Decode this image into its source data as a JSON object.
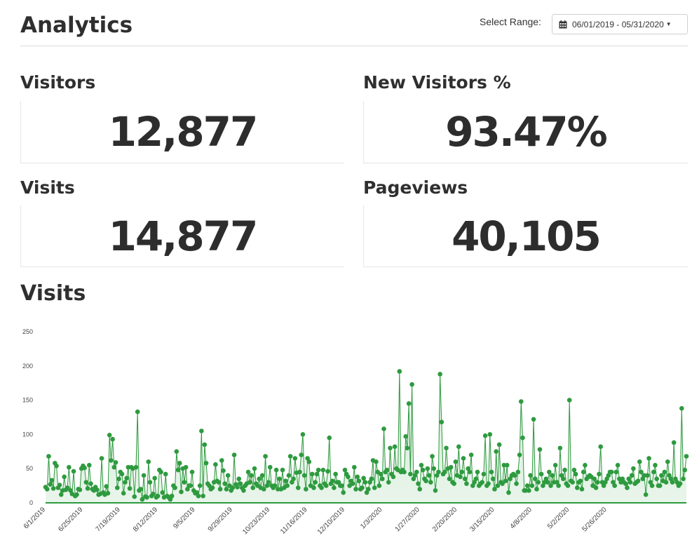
{
  "header": {
    "title": "Analytics",
    "range_label": "Select Range:",
    "range_value": "06/01/2019 - 05/31/2020",
    "calendar_icon": "calendar-icon",
    "caret_icon": "caret-down-icon"
  },
  "metrics": [
    {
      "title": "Visitors",
      "value": "12,877"
    },
    {
      "title": "New Visitors %",
      "value": "93.47%"
    },
    {
      "title": "Visits",
      "value": "14,877"
    },
    {
      "title": "Pageviews",
      "value": "40,105"
    }
  ],
  "chart_title": "Visits",
  "colors": {
    "line": "#2e9a3f",
    "fill": "#cfe9d3",
    "axis": "#2e9a3f"
  },
  "chart_data": {
    "type": "area",
    "title": "Visits",
    "xlabel": "",
    "ylabel": "",
    "ylim": [
      0,
      250
    ],
    "y_ticks": [
      0,
      50,
      100,
      150,
      200,
      250
    ],
    "x_tick_labels": [
      "6/1/2019",
      "6/25/2019",
      "7/19/2019",
      "8/12/2019",
      "9/5/2019",
      "9/29/2019",
      "10/23/2019",
      "11/16/2019",
      "12/10/2019",
      "1/3/2020",
      "1/27/2020",
      "2/20/2020",
      "3/15/2020",
      "4/8/2020",
      "5/2/2020",
      "5/26/2020"
    ],
    "x_tick_interval_days": 24,
    "grid": false,
    "series": [
      {
        "values": [
          23,
          20,
          68,
          27,
          33,
          21,
          58,
          54,
          22,
          26,
          12,
          18,
          38,
          19,
          22,
          52,
          18,
          13,
          46,
          10,
          12,
          20,
          19,
          50,
          54,
          51,
          30,
          21,
          55,
          28,
          20,
          18,
          23,
          19,
          12,
          13,
          65,
          15,
          12,
          24,
          14,
          99,
          62,
          93,
          52,
          59,
          22,
          35,
          45,
          42,
          14,
          30,
          36,
          52,
          21,
          52,
          50,
          9,
          52,
          133,
          18,
          20,
          5,
          40,
          9,
          8,
          60,
          30,
          10,
          13,
          36,
          8,
          10,
          48,
          45,
          15,
          8,
          42,
          10,
          8,
          5,
          10,
          25,
          22,
          75,
          48,
          58,
          16,
          50,
          30,
          52,
          20,
          25,
          25,
          45,
          18,
          14,
          15,
          10,
          25,
          105,
          10,
          85,
          58,
          28,
          25,
          20,
          22,
          30,
          56,
          32,
          30,
          20,
          62,
          47,
          28,
          20,
          40,
          25,
          18,
          22,
          70,
          27,
          23,
          35,
          28,
          22,
          18,
          25,
          28,
          45,
          30,
          40,
          22,
          50,
          28,
          25,
          35,
          22,
          40,
          20,
          68,
          25,
          30,
          52,
          25,
          22,
          25,
          48,
          20,
          35,
          20,
          48,
          22,
          32,
          25,
          40,
          68,
          30,
          35,
          65,
          44,
          22,
          45,
          70,
          100,
          40,
          20,
          65,
          60,
          25,
          42,
          22,
          30,
          42,
          48,
          25,
          22,
          48,
          28,
          25,
          46,
          95,
          28,
          32,
          22,
          42,
          30,
          30,
          25,
          25,
          15,
          48,
          42,
          38,
          25,
          32,
          28,
          52,
          20,
          38,
          32,
          20,
          22,
          36,
          30,
          15,
          20,
          30,
          35,
          62,
          22,
          60,
          45,
          25,
          42,
          35,
          108,
          45,
          48,
          30,
          80,
          42,
          38,
          82,
          50,
          48,
          192,
          45,
          48,
          45,
          97,
          80,
          145,
          42,
          173,
          35,
          40,
          45,
          28,
          20,
          55,
          48,
          35,
          32,
          50,
          40,
          30,
          68,
          50,
          18,
          40,
          45,
          188,
          118,
          42,
          45,
          80,
          50,
          35,
          52,
          30,
          28,
          60,
          40,
          82,
          38,
          45,
          65,
          35,
          28,
          50,
          45,
          70,
          25,
          30,
          35,
          45,
          25,
          28,
          30,
          42,
          98,
          25,
          28,
          100,
          45,
          35,
          20,
          75,
          25,
          85,
          30,
          28,
          55,
          32,
          55,
          15,
          35,
          40,
          42,
          40,
          28,
          45,
          70,
          148,
          95,
          18,
          18,
          25,
          18,
          40,
          25,
          122,
          35,
          20,
          30,
          78,
          42,
          25,
          30,
          35,
          30,
          45,
          25,
          40,
          30,
          55,
          30,
          25,
          80,
          40,
          35,
          48,
          28,
          25,
          150,
          32,
          30,
          48,
          42,
          22,
          30,
          32,
          20,
          45,
          55,
          35,
          38,
          40,
          38,
          25,
          35,
          22,
          30,
          42,
          82,
          30,
          25,
          30,
          35,
          40,
          45,
          45,
          30,
          25,
          45,
          55,
          35,
          30,
          35,
          30,
          28,
          22,
          35,
          30,
          40,
          50,
          28,
          30,
          32,
          60,
          45,
          35,
          40,
          12,
          40,
          65,
          30,
          25,
          45,
          55,
          35,
          25,
          25,
          40,
          32,
          45,
          30,
          60,
          40,
          35,
          30,
          88,
          35,
          30,
          25,
          28,
          138,
          35,
          48,
          68
        ]
      }
    ]
  }
}
